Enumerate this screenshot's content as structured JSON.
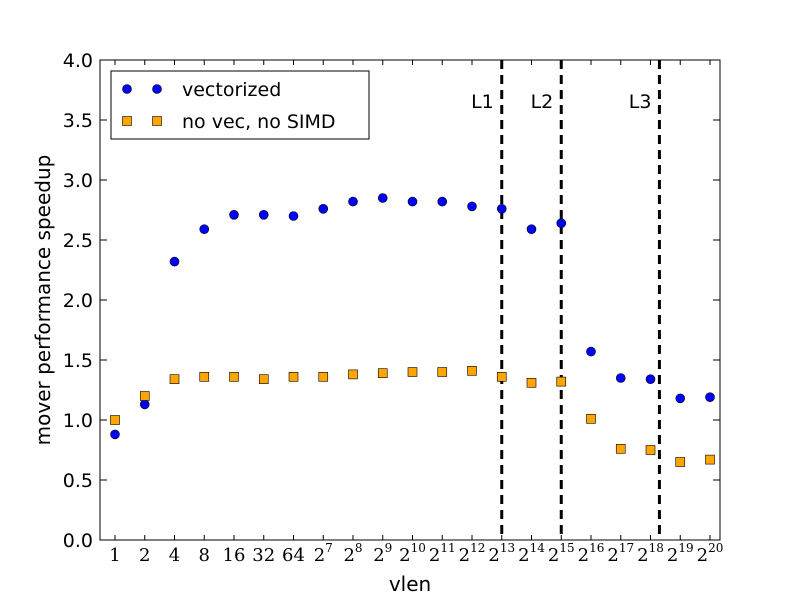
{
  "chart_data": {
    "type": "scatter",
    "title": "",
    "xlabel": "vlen",
    "ylabel": "mover performance speedup",
    "ylim": [
      0.0,
      4.0
    ],
    "yticks": [
      "0.0",
      "0.5",
      "1.0",
      "1.5",
      "2.0",
      "2.5",
      "3.0",
      "3.5",
      "4.0"
    ],
    "categories": [
      {
        "base": "1",
        "exp": ""
      },
      {
        "base": "2",
        "exp": ""
      },
      {
        "base": "4",
        "exp": ""
      },
      {
        "base": "8",
        "exp": ""
      },
      {
        "base": "16",
        "exp": ""
      },
      {
        "base": "32",
        "exp": ""
      },
      {
        "base": "64",
        "exp": ""
      },
      {
        "base": "2",
        "exp": "7"
      },
      {
        "base": "2",
        "exp": "8"
      },
      {
        "base": "2",
        "exp": "9"
      },
      {
        "base": "2",
        "exp": "10"
      },
      {
        "base": "2",
        "exp": "11"
      },
      {
        "base": "2",
        "exp": "12"
      },
      {
        "base": "2",
        "exp": "13"
      },
      {
        "base": "2",
        "exp": "14"
      },
      {
        "base": "2",
        "exp": "15"
      },
      {
        "base": "2",
        "exp": "16"
      },
      {
        "base": "2",
        "exp": "17"
      },
      {
        "base": "2",
        "exp": "18"
      },
      {
        "base": "2",
        "exp": "19"
      },
      {
        "base": "2",
        "exp": "20"
      }
    ],
    "series": [
      {
        "name": "vectorized",
        "marker": "circle",
        "color": "#0000ff",
        "values": [
          0.88,
          1.13,
          2.32,
          2.59,
          2.71,
          2.71,
          2.7,
          2.76,
          2.82,
          2.85,
          2.82,
          2.82,
          2.78,
          2.76,
          2.59,
          2.64,
          1.57,
          1.35,
          1.34,
          1.18,
          1.19
        ]
      },
      {
        "name": "no vec, no SIMD",
        "marker": "square",
        "color": "#ffa500",
        "values": [
          1.0,
          1.2,
          1.34,
          1.36,
          1.36,
          1.34,
          1.36,
          1.36,
          1.38,
          1.39,
          1.4,
          1.4,
          1.41,
          1.36,
          1.31,
          1.32,
          1.01,
          0.76,
          0.75,
          0.65,
          0.67
        ]
      }
    ],
    "cache_lines": [
      {
        "label": "L1",
        "at_index": 13
      },
      {
        "label": "L2",
        "at_index": 15
      },
      {
        "label": "L3",
        "at_index": 18.3
      }
    ],
    "legend_position": "upper-left",
    "grid": false
  }
}
